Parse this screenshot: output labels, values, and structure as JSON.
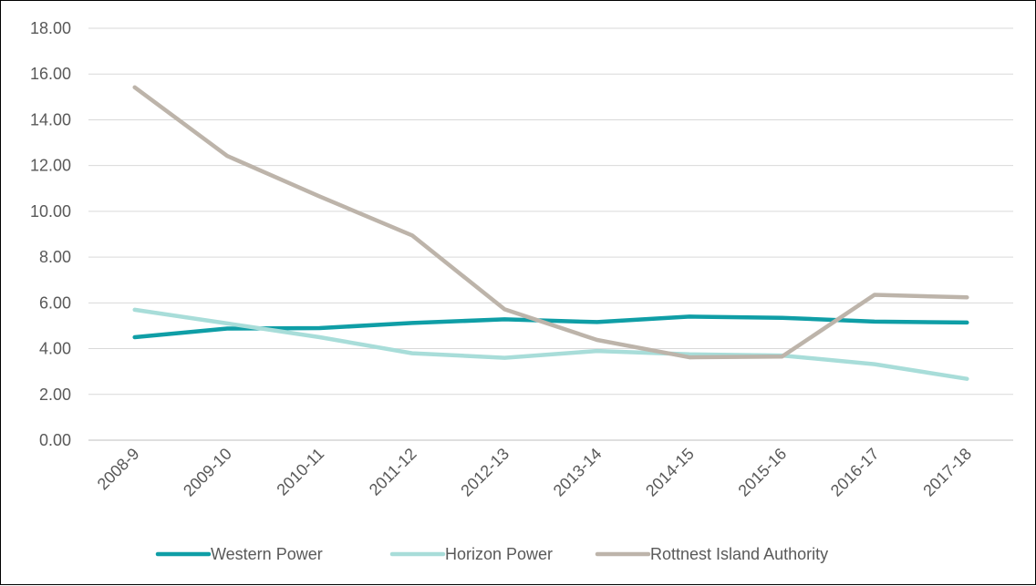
{
  "chart_data": {
    "type": "line",
    "title": "",
    "xlabel": "",
    "ylabel": "",
    "categories": [
      "2008-9",
      "2009-10",
      "2010-11",
      "2011-12",
      "2012-13",
      "2013-14",
      "2014-15",
      "2015-16",
      "2016-17",
      "2017-18"
    ],
    "ylim": [
      0,
      18
    ],
    "yticks": [
      "0.00",
      "2.00",
      "4.00",
      "6.00",
      "8.00",
      "10.00",
      "12.00",
      "14.00",
      "16.00",
      "18.00"
    ],
    "grid": true,
    "legend_position": "bottom",
    "series": [
      {
        "name": "Western Power",
        "color": "#0f9ea6",
        "values": [
          4.5,
          4.88,
          4.9,
          5.12,
          5.28,
          5.16,
          5.4,
          5.35,
          5.18,
          5.14
        ]
      },
      {
        "name": "Horizon Power",
        "color": "#a8ddd9",
        "values": [
          5.7,
          5.1,
          4.5,
          3.8,
          3.6,
          3.9,
          3.75,
          3.7,
          3.32,
          2.68
        ]
      },
      {
        "name": "Rottnest Island Authority",
        "color": "#bdb4aa",
        "values": [
          15.42,
          12.42,
          10.65,
          8.95,
          5.72,
          4.38,
          3.62,
          3.65,
          6.35,
          6.24
        ]
      }
    ]
  }
}
